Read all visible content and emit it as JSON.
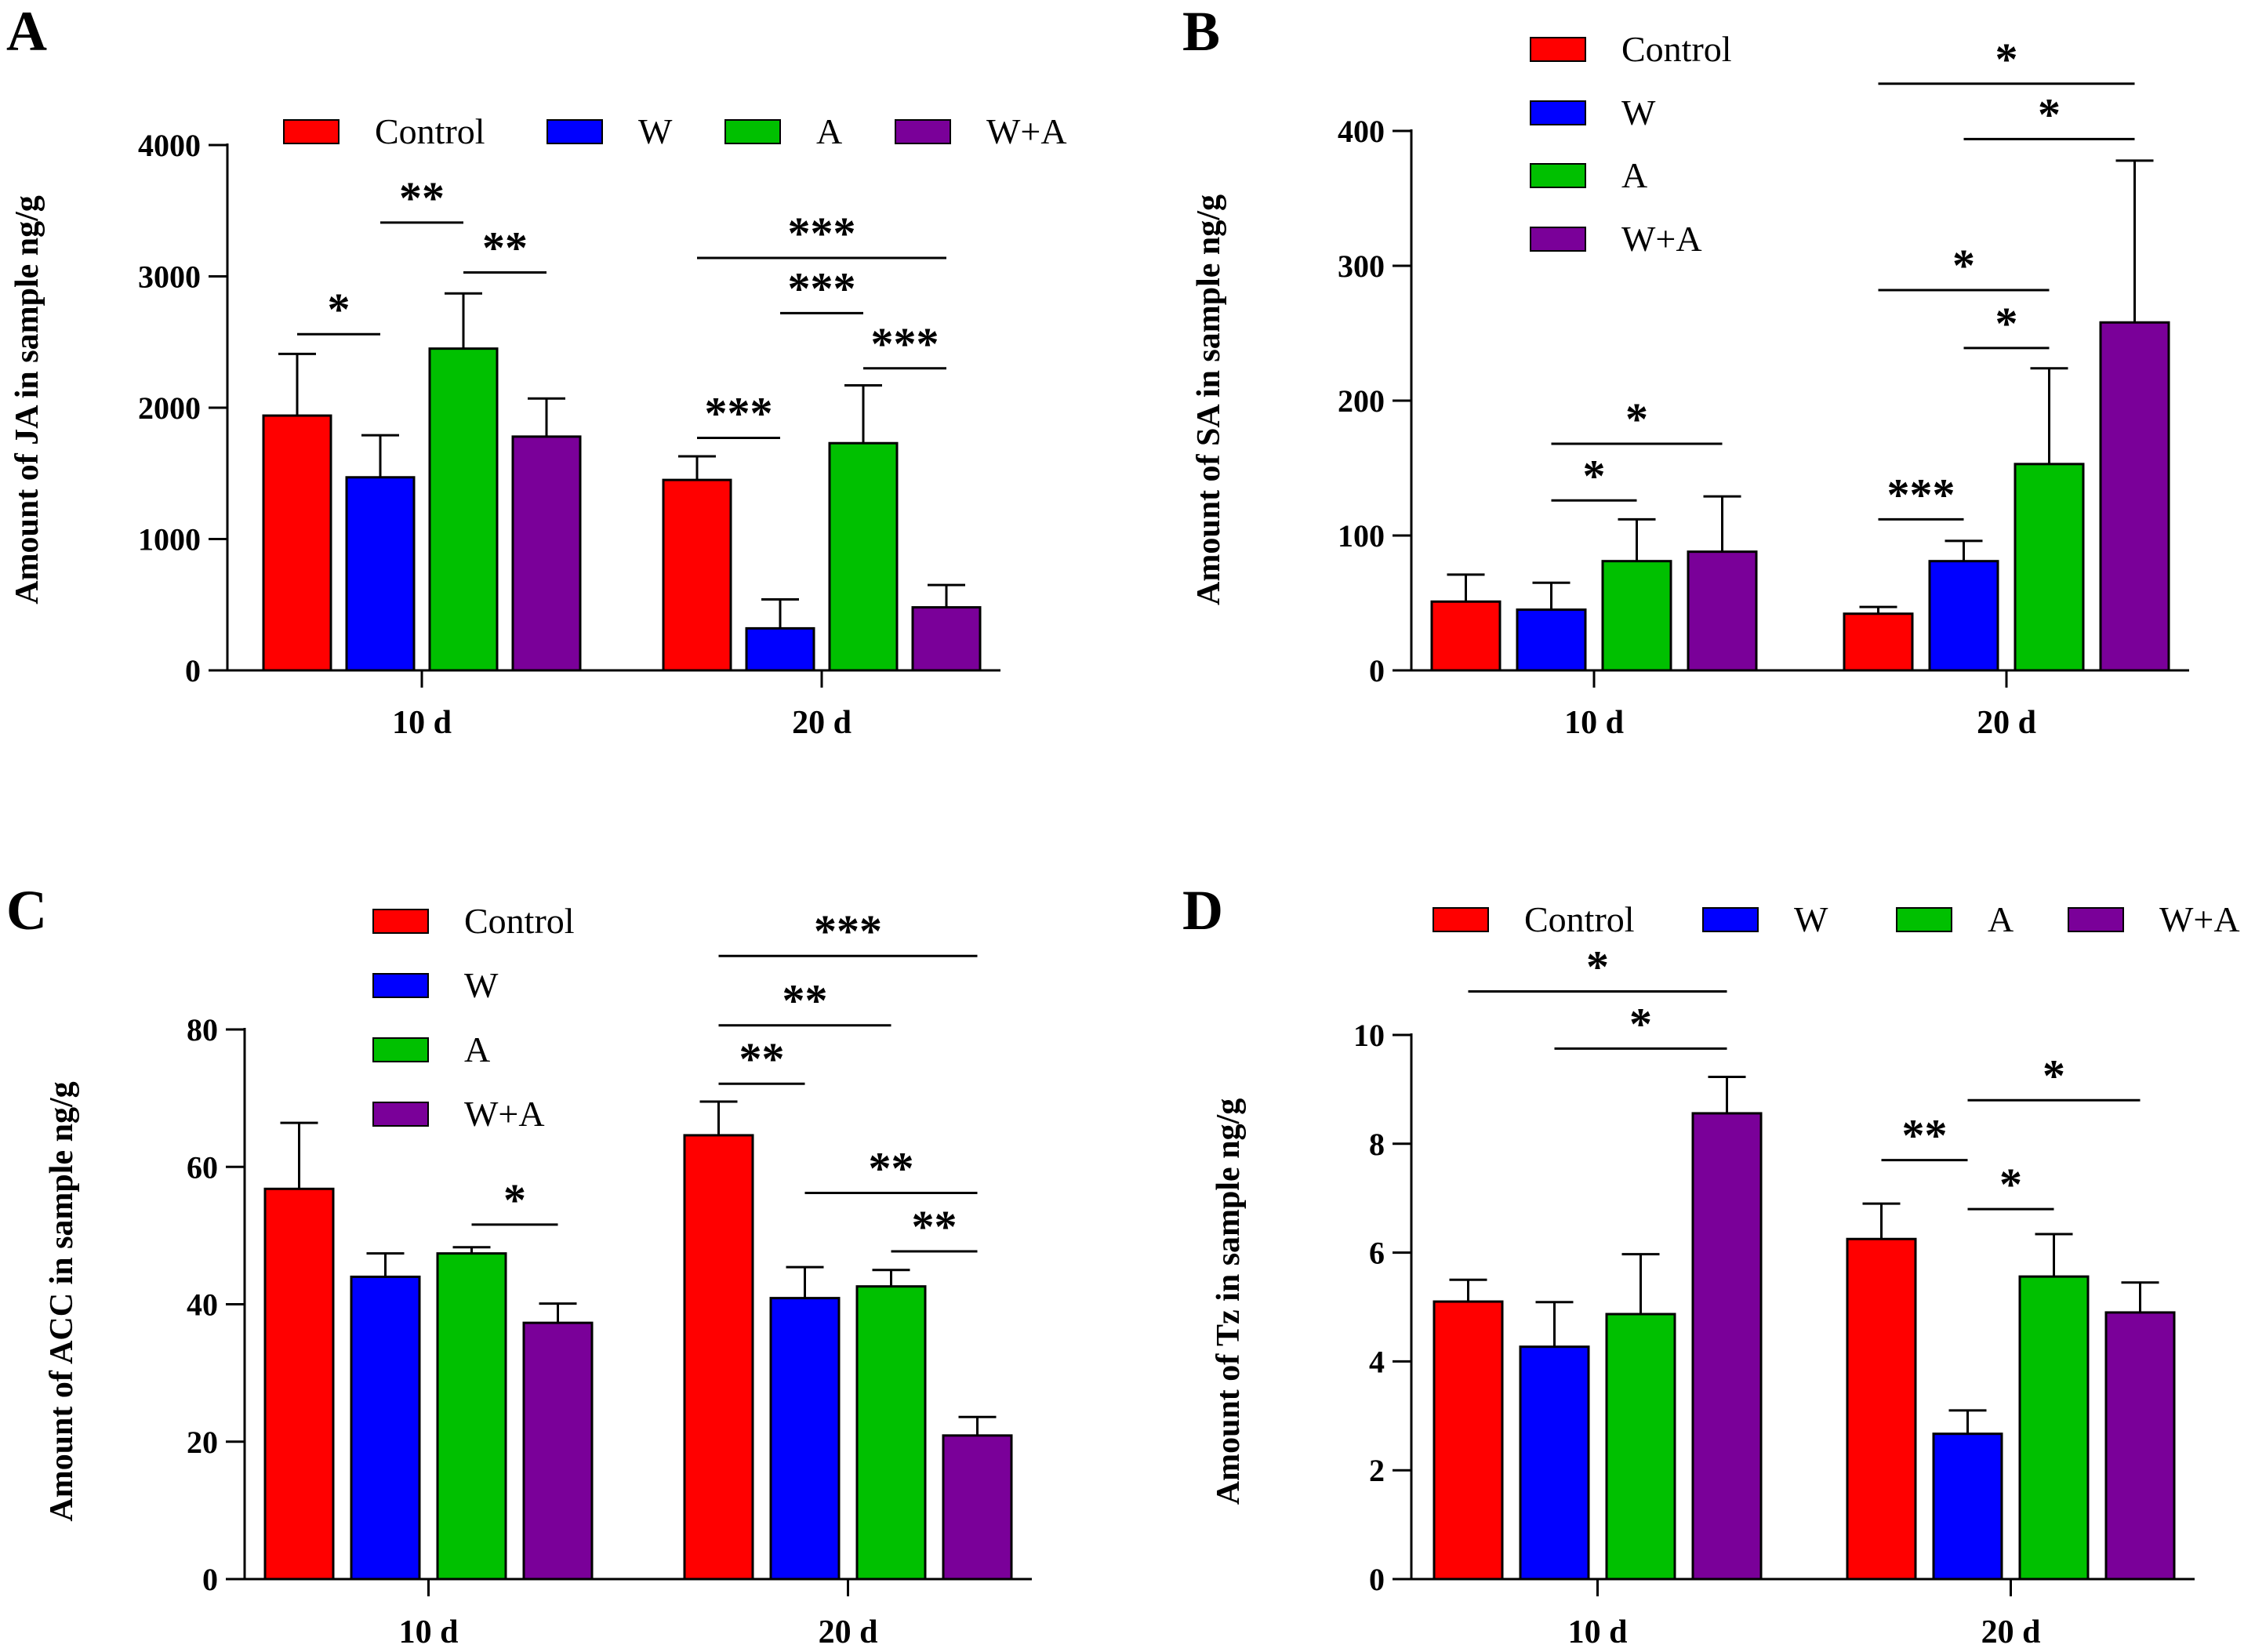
{
  "colors": {
    "Control": "#ff0000",
    "W": "#0000ff",
    "A": "#00c000",
    "W+A": "#7a0099"
  },
  "chart_data": [
    {
      "type": "bar",
      "panel": "A",
      "title": "",
      "xlabel": "",
      "ylabel": "Amount of JA in sample ng/g",
      "categories": [
        "10 d",
        "20 d"
      ],
      "ylim": [
        0,
        4000
      ],
      "yticks": [
        0,
        1000,
        2000,
        3000,
        4000
      ],
      "legend_position": "top",
      "legend_layout": "row",
      "series": [
        {
          "name": "Control",
          "values": [
            1940,
            1450
          ],
          "errors": [
            470,
            180
          ]
        },
        {
          "name": "W",
          "values": [
            1470,
            320
          ],
          "errors": [
            320,
            220
          ]
        },
        {
          "name": "A",
          "values": [
            2450,
            1730
          ],
          "errors": [
            420,
            440
          ]
        },
        {
          "name": "W+A",
          "values": [
            1780,
            480
          ],
          "errors": [
            290,
            170
          ]
        }
      ],
      "significance": [
        {
          "group": 0,
          "from": 0,
          "to": 1,
          "label": "*",
          "y": 2560
        },
        {
          "group": 0,
          "from": 1,
          "to": 2,
          "label": "**",
          "y": 3410
        },
        {
          "group": 0,
          "from": 2,
          "to": 3,
          "label": "**",
          "y": 3030
        },
        {
          "group": 1,
          "from": 0,
          "to": 1,
          "label": "***",
          "y": 1770
        },
        {
          "group": 1,
          "from": 1,
          "to": 2,
          "label": "***",
          "y": 2720
        },
        {
          "group": 1,
          "from": 2,
          "to": 3,
          "label": "***",
          "y": 2300
        },
        {
          "group": 1,
          "from": 0,
          "to": 3,
          "label": "***",
          "y": 3140
        }
      ]
    },
    {
      "type": "bar",
      "panel": "B",
      "title": "",
      "xlabel": "",
      "ylabel": "Amount of SA in sample ng/g",
      "categories": [
        "10 d",
        "20 d"
      ],
      "ylim": [
        0,
        400
      ],
      "yticks": [
        0,
        100,
        200,
        300,
        400
      ],
      "legend_position": "top-left",
      "legend_layout": "column",
      "series": [
        {
          "name": "Control",
          "values": [
            51,
            42
          ],
          "errors": [
            20,
            5
          ]
        },
        {
          "name": "W",
          "values": [
            45,
            81
          ],
          "errors": [
            20,
            15
          ]
        },
        {
          "name": "A",
          "values": [
            81,
            153
          ],
          "errors": [
            31,
            71
          ]
        },
        {
          "name": "W+A",
          "values": [
            88,
            258
          ],
          "errors": [
            41,
            120
          ]
        }
      ],
      "significance": [
        {
          "group": 0,
          "from": 1,
          "to": 2,
          "label": "*",
          "y": 126
        },
        {
          "group": 0,
          "from": 1,
          "to": 3,
          "label": "*",
          "y": 168
        },
        {
          "group": 1,
          "from": 0,
          "to": 1,
          "label": "***",
          "y": 112
        },
        {
          "group": 1,
          "from": 1,
          "to": 2,
          "label": "*",
          "y": 239
        },
        {
          "group": 1,
          "from": 0,
          "to": 2,
          "label": "*",
          "y": 282
        },
        {
          "group": 1,
          "from": 1,
          "to": 3,
          "label": "*",
          "y": 394
        },
        {
          "group": 1,
          "from": 0,
          "to": 3,
          "label": "*",
          "y": 435
        }
      ]
    },
    {
      "type": "bar",
      "panel": "C",
      "title": "",
      "xlabel": "",
      "ylabel": "Amount of ACC in sample ng/g",
      "categories": [
        "10 d",
        "20 d"
      ],
      "ylim": [
        0,
        80
      ],
      "yticks": [
        0,
        20,
        40,
        60,
        80
      ],
      "legend_position": "top-left",
      "legend_layout": "column",
      "series": [
        {
          "name": "Control",
          "values": [
            56.8,
            64.6
          ],
          "errors": [
            9.6,
            4.9
          ]
        },
        {
          "name": "W",
          "values": [
            44.0,
            40.9
          ],
          "errors": [
            3.4,
            4.5
          ]
        },
        {
          "name": "A",
          "values": [
            47.4,
            42.6
          ],
          "errors": [
            0.9,
            2.4
          ]
        },
        {
          "name": "W+A",
          "values": [
            37.3,
            20.9
          ],
          "errors": [
            2.8,
            2.7
          ]
        }
      ],
      "significance": [
        {
          "group": 0,
          "from": 2,
          "to": 3,
          "label": "*",
          "y": 51.6
        },
        {
          "group": 1,
          "from": 0,
          "to": 1,
          "label": "**",
          "y": 72.1
        },
        {
          "group": 1,
          "from": 2,
          "to": 3,
          "label": "**",
          "y": 47.7
        },
        {
          "group": 1,
          "from": 1,
          "to": 3,
          "label": "**",
          "y": 56.2
        },
        {
          "group": 1,
          "from": 0,
          "to": 2,
          "label": "**",
          "y": 80.6
        },
        {
          "group": 1,
          "from": 0,
          "to": 3,
          "label": "***",
          "y": 90.7
        }
      ]
    },
    {
      "type": "bar",
      "panel": "D",
      "title": "",
      "xlabel": "",
      "ylabel": "Amount of Tz in sample ng/g",
      "categories": [
        "10 d",
        "20 d"
      ],
      "ylim": [
        0,
        10
      ],
      "yticks": [
        0,
        2,
        4,
        6,
        8,
        10
      ],
      "legend_position": "top",
      "legend_layout": "row",
      "series": [
        {
          "name": "Control",
          "values": [
            5.1,
            6.25
          ],
          "errors": [
            0.4,
            0.65
          ]
        },
        {
          "name": "W",
          "values": [
            4.27,
            2.67
          ],
          "errors": [
            0.82,
            0.43
          ]
        },
        {
          "name": "A",
          "values": [
            4.87,
            5.56
          ],
          "errors": [
            1.1,
            0.78
          ]
        },
        {
          "name": "W+A",
          "values": [
            8.56,
            4.9
          ],
          "errors": [
            0.67,
            0.55
          ]
        }
      ],
      "significance": [
        {
          "group": 0,
          "from": 1,
          "to": 3,
          "label": "*",
          "y": 9.75
        },
        {
          "group": 0,
          "from": 0,
          "to": 3,
          "label": "*",
          "y": 10.8
        },
        {
          "group": 1,
          "from": 0,
          "to": 1,
          "label": "**",
          "y": 7.7
        },
        {
          "group": 1,
          "from": 1,
          "to": 2,
          "label": "*",
          "y": 6.8
        },
        {
          "group": 1,
          "from": 1,
          "to": 3,
          "label": "*",
          "y": 8.8
        }
      ]
    }
  ]
}
